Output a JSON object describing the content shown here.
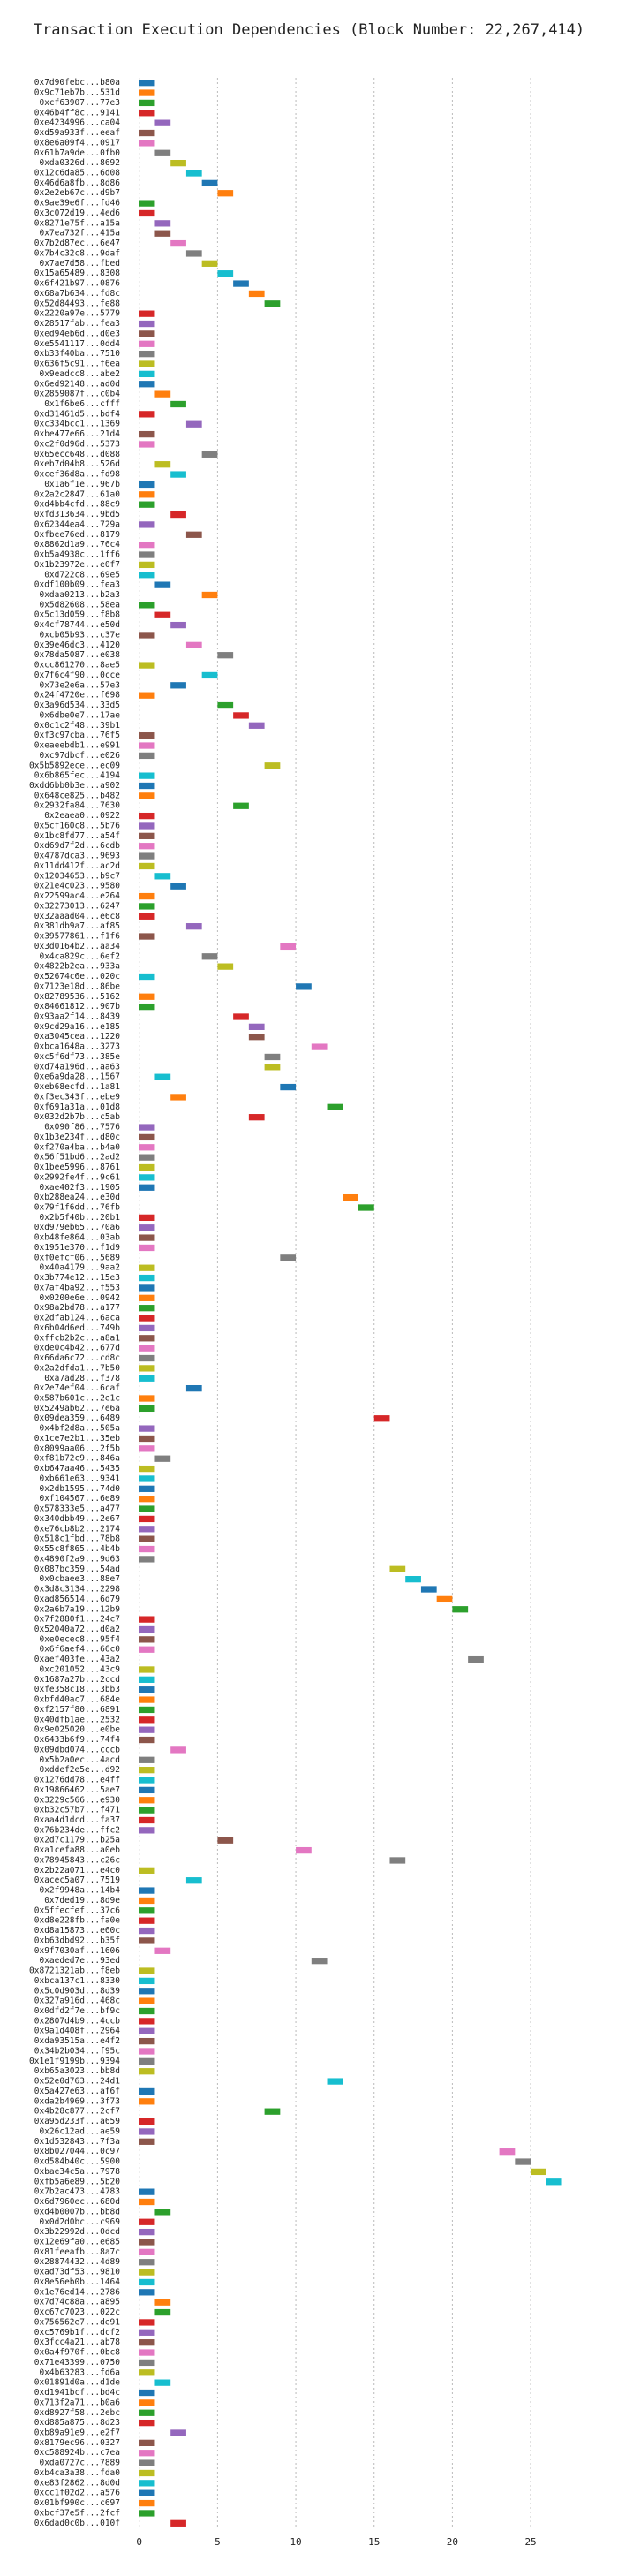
{
  "chart_data": {
    "type": "gantt",
    "title": "Transaction Execution Dependencies (Block Number: 22,267,414)",
    "categories": [
      "0x7d90febc...b80a",
      "0x9c71eb7b...531d",
      "0xcf63907...77e3",
      "0x46b4ff8c...9141",
      "0xe4234996...ca04",
      "0xd59a933f...eeaf",
      "0x8e6a09f4...0917",
      "0x61b7a9de...0fb0",
      "0xda0326d...8692",
      "0x12c6da85...6d08",
      "0x46d6a8fb...8d86",
      "0x2e2eb67c...d9b7",
      "0x9ae39e6f...fd46",
      "0x3c072d19...4ed6",
      "0x8271e75f...a15a",
      "0x7ea732f...415a",
      "0x7b2d87ec...6e47",
      "0x7b4c32c8...9daf",
      "0x7ae7d58...fbed",
      "0x15a65489...8308",
      "0x6f421b97...0876",
      "0x68a7b634...fd8c",
      "0x52d84493...fe88",
      "0x2220a97e...5779",
      "0x28517fab...fea3",
      "0xed94eb6d...d0e3",
      "0xe5541117...0dd4",
      "0xb33f40ba...7510",
      "0x636f5c91...f6ea",
      "0x9eadcc8...abe2",
      "0x6ed92148...ad0d",
      "0x2859087f...c0b4",
      "0x1f6be6...cfff",
      "0xd31461d5...bdf4",
      "0xc334bcc1...1369",
      "0xbe477e66...21d4",
      "0xc2f0d96d...5373",
      "0x65ecc648...d088",
      "0xeb7d04b8...526d",
      "0xcef36d8a...fd98",
      "0x1a6f1e...967b",
      "0x2a2c2847...61a0",
      "0xd4bb4cfd...88c9",
      "0xfd313634...9bd5",
      "0x62344ea4...729a",
      "0xfbee76ed...8179",
      "0x8862d1a9...76c4",
      "0xb5a4938c...1ff6",
      "0x1b23972e...e0f7",
      "0xd722c8...69e5",
      "0xdf100b09...fea3",
      "0xdaa0213...b2a3",
      "0x5d82608...58ea",
      "0x5c13d059...f8b8",
      "0x4cf78744...e50d",
      "0xcb05b93...c37e",
      "0x39e46dc3...4120",
      "0x78da5087...e038",
      "0xcc861270...8ae5",
      "0x7f6c4f90...0cce",
      "0x73e2e6a...57e3",
      "0x24f4720e...f698",
      "0x3a96d534...33d5",
      "0x6dbe0e7...17ae",
      "0x0c1c2f48...39b1",
      "0xf3c97cba...76f5",
      "0xeaeebdb1...e991",
      "0xc97dbcf...e026",
      "0x5b5892ece...ec09",
      "0x6b865fec...4194",
      "0xdd6bb0b3e...a902",
      "0x648ce825...b482",
      "0x2932fa84...7630",
      "0x2eaea0...0922",
      "0x5cf160c8...5b76",
      "0x1bc8fd77...a54f",
      "0xd69d7f2d...6cdb",
      "0x4787dca3...9693",
      "0x11dd412f...ac2d",
      "0x12034653...b9c7",
      "0x21e4c023...9580",
      "0x22599ac4...e264",
      "0x32273013...6247",
      "0x32aaad04...e6c8",
      "0x381db9a7...af85",
      "0x39577861...f1f6",
      "0x3d0164b2...aa34",
      "0x4ca829c...6ef2",
      "0x4822b2ea...933a",
      "0x52674c6e...020c",
      "0x7123e18d...86be",
      "0x82789536...5162",
      "0x84661812...907b",
      "0x93aa2f14...8439",
      "0x9cd29a16...e185",
      "0xa3045cea...1220",
      "0xbca1648a...3273",
      "0xc5f6df73...385e",
      "0xd74a196d...aa63",
      "0xe6a9da28...1567",
      "0xeb68ecfd...1a81",
      "0xf3ec343f...ebe9",
      "0xf691a31a...01d8",
      "0x032d2b7b...c5ab",
      "0x090f86...7576",
      "0x1b3e234f...d80c",
      "0xf270a4ba...b4a0",
      "0x56f51bd6...2ad2",
      "0x1bee5996...8761",
      "0x2992fe4f...9c61",
      "0xae402f3...1905",
      "0xb288ea24...e30d",
      "0x79f1f6dd...76fb",
      "0x2b5f40b...20b1",
      "0xd979eb65...70a6",
      "0xb48fe864...03ab",
      "0x1951e370...f1d9",
      "0xf0efcf06...5689",
      "0x40a4179...9aa2",
      "0x3b774e12...15e3",
      "0x7af4ba92...f553",
      "0x0200e6e...0942",
      "0x98a2bd78...a177",
      "0x2dfab124...6aca",
      "0x6b04d6ed...749b",
      "0xffcb2b2c...a8a1",
      "0xde0c4b42...677d",
      "0x66da6c72...cd8c",
      "0x2a2dfda1...7b50",
      "0xa7ad28...f378",
      "0x2e74ef04...6caf",
      "0x587b601c...2e1c",
      "0x5249ab62...7e6a",
      "0x09dea359...6489",
      "0x4bf2d8a...505a",
      "0x1ce7e2b1...35eb",
      "0x8099aa06...2f5b",
      "0xf81b72c9...846a",
      "0xb647aa46...5435",
      "0xb661e63...9341",
      "0x2db1595...74d0",
      "0xf104567...6e89",
      "0x578333e5...a477",
      "0x340dbb49...2e67",
      "0xe76cb8b2...2174",
      "0x518c1fbd...78b8",
      "0x55c8f865...4b4b",
      "0x4890f2a9...9d63",
      "0x087bc359...54ad",
      "0x0cbaee3...88e7",
      "0x3d8c3134...2298",
      "0xad856514...6d79",
      "0x2a6b7a19...12b9",
      "0x7f2880f1...24c7",
      "0x52040a72...d0a2",
      "0xe0ecec8...95f4",
      "0x6f6aef4...66c0",
      "0xaef403fe...43a2",
      "0xc201052...43c9",
      "0x1687a27b...2ccd",
      "0xfe358c18...3bb3",
      "0xbfd40ac7...684e",
      "0xf2157f80...6891",
      "0x40dfb1ae...2532",
      "0x9e025020...e0be",
      "0x6433b6f9...74f4",
      "0x09dbd074...cccb",
      "0x5b2a0ec...4acd",
      "0xddef2e5e...d92",
      "0x1276dd78...e4ff",
      "0x19866462...5ae7",
      "0x3229c566...e930",
      "0xb32c57b7...f471",
      "0xaa4d1dcd...fa37",
      "0x76b234de...ffc2",
      "0x2d7c1179...b25a",
      "0xa1cefa88...a0eb",
      "0x78945843...c26c",
      "0x2b22a071...e4c0",
      "0xacec5a07...7519",
      "0x2f9948a...14b4",
      "0x7ded19...8d9e",
      "0x5ffecfef...37c6",
      "0xd8e228fb...fa0e",
      "0xd8a15873...e60c",
      "0xb63dbd92...b35f",
      "0x9f7030af...1606",
      "0xaeded7e...93ed",
      "0x8721321ab...f8eb",
      "0xbca137c1...8330",
      "0x5c0d903d...8d39",
      "0x327a916d...468c",
      "0x0dfd2f7e...bf9c",
      "0x2807d4b9...4ccb",
      "0x9a1d408f...2964",
      "0xda93515a...e4f2",
      "0x34b2b034...f95c",
      "0x1e1f9199b...9394",
      "0xb65a3023...bb8d",
      "0x52e0d763...24d1",
      "0x5a427e63...af6f",
      "0xda2b4969...3f73",
      "0x4b28c877...2cf7",
      "0xa95d233f...a659",
      "0x26c12ad...ae59",
      "0x1d532843...7f3a",
      "0x8b027044...0c97",
      "0xd584b40c...5900",
      "0xbae34c5a...7978",
      "0xfb5a6e89...5b20",
      "0x7b2ac473...4783",
      "0x6d7960ec...680d",
      "0xd4b0007b...bb8d",
      "0x0d2d0bc...c969",
      "0x3b22992d...0dcd",
      "0x12e69fa0...e685",
      "0x81feeafb...8a7c",
      "0x28874432...4d89",
      "0xad73df53...9810",
      "0x8e56eb0b...1464",
      "0x1e76ed14...2786",
      "0x7d74c88a...a895",
      "0xc67c7023...022c",
      "0x756562e7...de91",
      "0xc5769b1f...dcf2",
      "0x3fcc4a21...ab78",
      "0x0a4f970f...0bc8",
      "0x71e43399...0750",
      "0x4b63283...fd6a",
      "0x01891d0a...d1de",
      "0xd1941bcf...bd4c",
      "0x713f2a71...b0a6",
      "0xd8927f58...2ebc",
      "0xd885a875...8d23",
      "0xb89a91e9...e2f7",
      "0x8179ec96...0327",
      "0xc588924b...c7ea",
      "0xda0727c...7889",
      "0xb4ca3a38...fda0",
      "0xe83f2862...8d0d",
      "0xcc1f02d2...a576",
      "0x01bf990c...c697",
      "0xbcf37e5f...2fcf",
      "0x6dad0c0b...010f"
    ],
    "values": [
      0,
      0,
      0,
      0,
      1,
      0,
      0,
      1,
      2,
      3,
      4,
      5,
      0,
      0,
      1,
      1,
      2,
      3,
      4,
      5,
      6,
      7,
      8,
      0,
      0,
      0,
      0,
      0,
      0,
      0,
      0,
      1,
      2,
      0,
      3,
      0,
      0,
      4,
      1,
      2,
      0,
      0,
      0,
      2,
      0,
      3,
      0,
      0,
      0,
      0,
      1,
      4,
      0,
      1,
      2,
      0,
      3,
      5,
      0,
      4,
      2,
      0,
      5,
      6,
      7,
      0,
      0,
      0,
      8,
      0,
      0,
      0,
      6,
      0,
      0,
      0,
      0,
      0,
      0,
      1,
      2,
      0,
      0,
      0,
      3,
      0,
      9,
      4,
      5,
      0,
      10,
      0,
      0,
      6,
      7,
      7,
      11,
      8,
      8,
      1,
      9,
      2,
      12,
      7,
      0,
      0,
      0,
      0,
      0,
      0,
      0,
      13,
      14,
      0,
      0,
      0,
      0,
      9,
      0,
      0,
      0,
      0,
      0,
      0,
      0,
      0,
      0,
      0,
      0,
      0,
      3,
      0,
      0,
      15,
      0,
      0,
      0,
      1,
      0,
      0,
      0,
      0,
      0,
      0,
      0,
      0,
      0,
      0,
      16,
      17,
      18,
      19,
      20,
      0,
      0,
      0,
      0,
      21,
      0,
      0,
      0,
      0,
      0,
      0,
      0,
      0,
      2,
      0,
      0,
      0,
      0,
      0,
      0,
      0,
      0,
      5,
      10,
      16,
      0,
      3,
      0,
      0,
      0,
      0,
      0,
      0,
      1,
      11,
      0,
      0,
      0,
      0,
      0,
      0,
      0,
      0,
      0,
      0,
      0,
      12,
      0,
      0,
      8,
      0,
      0,
      0,
      23,
      24,
      25,
      26,
      0,
      0,
      1,
      0,
      0,
      0,
      0,
      0,
      0,
      0,
      0,
      1,
      1,
      0,
      0,
      0,
      0,
      0,
      0,
      1,
      0,
      0,
      0,
      0,
      2,
      0,
      0,
      0,
      0,
      0,
      0,
      0,
      0,
      2
    ],
    "colors": [
      "#1f77b4",
      "#ff7f0e",
      "#2ca02c",
      "#d62728",
      "#9467bd",
      "#8c564b",
      "#e377c2",
      "#7f7f7f",
      "#bcbd22",
      "#17becf"
    ],
    "xlim": [
      -1,
      29
    ],
    "xticks": [
      0,
      5,
      10,
      15,
      20,
      25
    ],
    "grid": true
  }
}
